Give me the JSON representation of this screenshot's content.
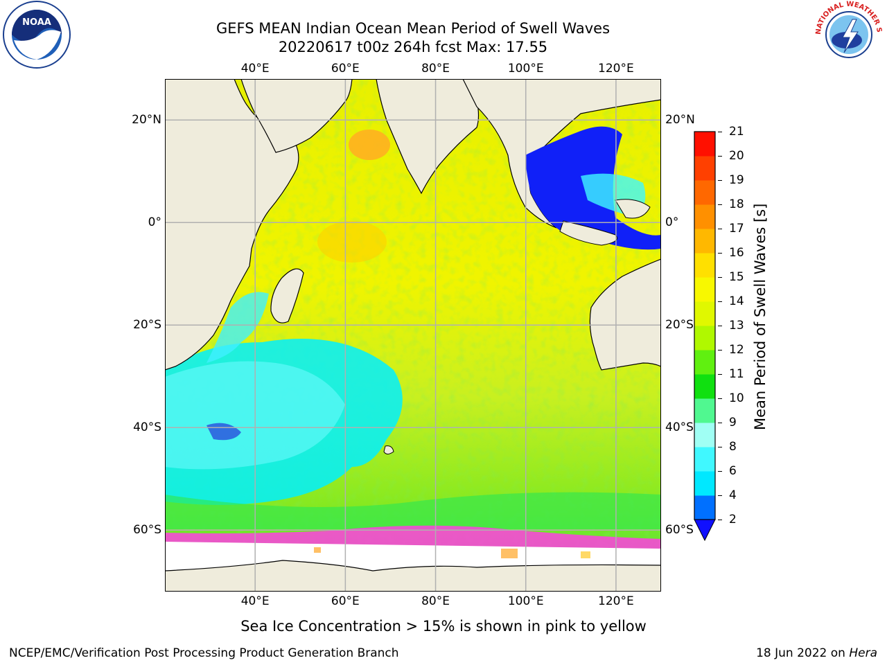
{
  "header": {
    "title_line1": "GEFS MEAN Indian Ocean Mean Period of Swell Waves",
    "title_line2": "20220617 t00z 264h fcst   Max: 17.55"
  },
  "logos": {
    "left": "NOAA",
    "right": "NATIONAL WEATHER SERVICE"
  },
  "map": {
    "lon_labels": [
      "40°E",
      "60°E",
      "80°E",
      "100°E",
      "120°E"
    ],
    "lat_labels": [
      "20°N",
      "0°",
      "20°S",
      "40°S",
      "60°S"
    ],
    "lon_values": [
      40,
      60,
      80,
      100,
      120
    ],
    "lat_values": [
      20,
      0,
      -20,
      -40,
      -60
    ],
    "extent": {
      "lon_min": 20,
      "lon_max": 130,
      "lat_min": -72,
      "lat_max": 28
    },
    "colors": {
      "land": "#efecdc",
      "sea_ice": "#ffffff",
      "grid": "#b0b0b0",
      "coast": "#000000"
    }
  },
  "colorbar": {
    "label": "Mean Period of Swell Waves [s]",
    "ticks": [
      "2",
      "4",
      "6",
      "8",
      "9",
      "10",
      "11",
      "12",
      "13",
      "14",
      "15",
      "16",
      "17",
      "18",
      "19",
      "20",
      "21"
    ],
    "extend": "min",
    "colors": [
      "#0070ff",
      "#00e8ff",
      "#40f8ff",
      "#a0fff4",
      "#50f890",
      "#10e010",
      "#60f010",
      "#b0f800",
      "#e0f800",
      "#f8f800",
      "#ffe000",
      "#ffb800",
      "#ff9000",
      "#ff6800",
      "#ff4000",
      "#ff1000"
    ],
    "under_color": "#1010ff"
  },
  "caption": "Sea Ice Concentration > 15% is shown in pink to yellow",
  "footer": {
    "left": "NCEP/EMC/Verification Post Processing Product Generation Branch",
    "right_date": "18 Jun 2022 on ",
    "right_host": "Hera"
  }
}
